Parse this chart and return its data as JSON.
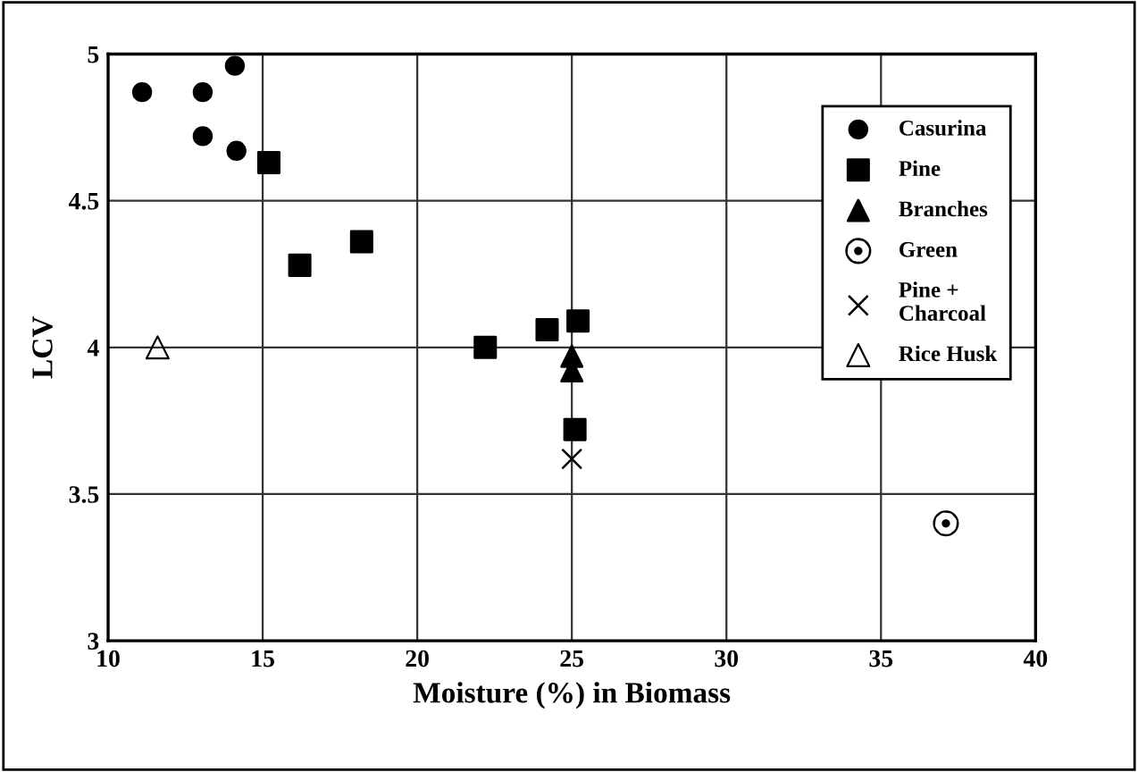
{
  "chart_data": {
    "type": "scatter",
    "xlabel": "Moisture (%) in Biomass",
    "ylabel": "LCV",
    "xlim": [
      10,
      40
    ],
    "xticks": [
      10,
      15,
      20,
      25,
      30,
      35,
      40
    ],
    "ylim": [
      3,
      5
    ],
    "yticks": [
      3,
      3.5,
      4,
      4.5,
      5
    ],
    "grid": true,
    "legend": "top right",
    "series": [
      {
        "name": "Casurina",
        "color": "#000000",
        "marker": "circle",
        "x": [
          11.1,
          13.06,
          14.1,
          13.06,
          14.15
        ],
        "values": [
          4.87,
          4.87,
          4.96,
          4.72,
          4.67
        ]
      },
      {
        "name": "Pine",
        "color": "#000000",
        "marker": "square",
        "x": [
          15.2,
          16.2,
          18.2,
          22.2,
          24.2,
          25.2,
          25.1
        ],
        "values": [
          4.63,
          4.28,
          4.36,
          4.0,
          4.06,
          4.09,
          3.72
        ]
      },
      {
        "name": "Branches",
        "color": "#000000",
        "marker": "triangle",
        "x": [
          25,
          25
        ],
        "values": [
          3.97,
          3.92
        ]
      },
      {
        "name": "Green",
        "color": "#000000",
        "marker": "circle_dot",
        "x": [
          37.1
        ],
        "values": [
          3.4
        ]
      },
      {
        "name": "Pine +\nCharcoal",
        "color": "#000000",
        "marker": "cross",
        "x": [
          25
        ],
        "values": [
          3.62
        ]
      },
      {
        "name": "Rice Husk",
        "color": "#000000",
        "marker": "triangle_open",
        "x": [
          11.6
        ],
        "values": [
          4.0
        ]
      }
    ]
  }
}
